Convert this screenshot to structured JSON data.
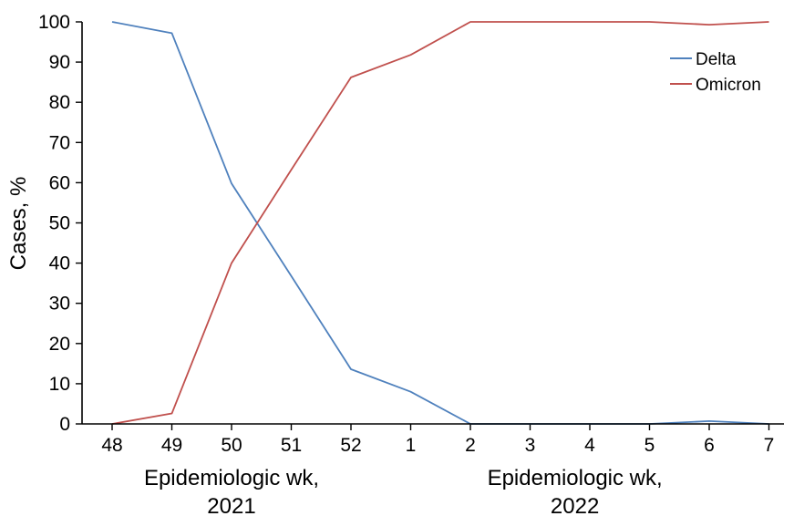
{
  "chart_data": {
    "type": "line",
    "x_ticks": [
      "48",
      "49",
      "50",
      "51",
      "52",
      "1",
      "2",
      "3",
      "4",
      "5",
      "6",
      "7"
    ],
    "x_group_labels": [
      {
        "line1": "Epidemiologic wk,",
        "line2": "2021"
      },
      {
        "line1": "Epidemiologic wk,",
        "line2": "2022"
      }
    ],
    "ylabel": "Cases, %",
    "ylim": [
      0,
      100
    ],
    "y_ticks": [
      0,
      10,
      20,
      30,
      40,
      50,
      60,
      70,
      80,
      90,
      100
    ],
    "grid": false,
    "legend_position": "top-right",
    "series": [
      {
        "name": "Delta",
        "color": "#4f81bd",
        "values": [
          100,
          97.2,
          59.8,
          36.8,
          13.6,
          8,
          0,
          0,
          0,
          0,
          0.7,
          0
        ]
      },
      {
        "name": "Omicron",
        "color": "#c0504d",
        "values": [
          0,
          2.6,
          40,
          63.2,
          86.2,
          91.8,
          100,
          100,
          100,
          100,
          99.3,
          100
        ]
      }
    ]
  }
}
